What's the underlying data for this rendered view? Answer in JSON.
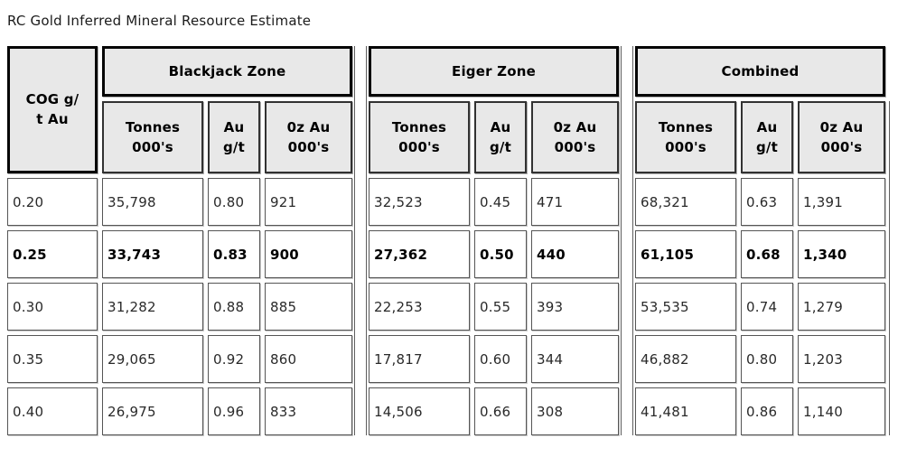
{
  "title": "RC Gold Inferred Mineral Resource Estimate",
  "table": {
    "cog_header": "COG g/\nt Au",
    "zone_headers": [
      "Blackjack Zone",
      "Eiger Zone",
      "Combined"
    ],
    "column_headers": {
      "tonnes": "Tonnes\n000's",
      "grade": "Au\ng/t",
      "ounces": "0z Au\n000's"
    },
    "rows": [
      {
        "cog": "0.20",
        "blackjack": [
          "35,798",
          "0.80",
          "921"
        ],
        "eiger": [
          "32,523",
          "0.45",
          "471"
        ],
        "combined": [
          "68,321",
          "0.63",
          "1,391"
        ]
      },
      {
        "cog": "0.25",
        "blackjack": [
          "33,743",
          "0.83",
          "900"
        ],
        "eiger": [
          "27,362",
          "0.50",
          "440"
        ],
        "combined": [
          "61,105",
          "0.68",
          "1,340"
        ]
      },
      {
        "cog": "0.30",
        "blackjack": [
          "31,282",
          "0.88",
          "885"
        ],
        "eiger": [
          "22,253",
          "0.55",
          "393"
        ],
        "combined": [
          "53,535",
          "0.74",
          "1,279"
        ]
      },
      {
        "cog": "0.35",
        "blackjack": [
          "29,065",
          "0.92",
          "860"
        ],
        "eiger": [
          "17,817",
          "0.60",
          "344"
        ],
        "combined": [
          "46,882",
          "0.80",
          "1,203"
        ]
      },
      {
        "cog": "0.40",
        "blackjack": [
          "26,975",
          "0.96",
          "833"
        ],
        "eiger": [
          "14,506",
          "0.66",
          "308"
        ],
        "combined": [
          "41,481",
          "0.86",
          "1,140"
        ]
      }
    ],
    "highlighted_row": "0.25"
  },
  "colors": {
    "header_bg": "#e8e8e8",
    "border_heavy": "#000000",
    "border_light": "#5a5a5a",
    "text": "#1c1c1c"
  }
}
